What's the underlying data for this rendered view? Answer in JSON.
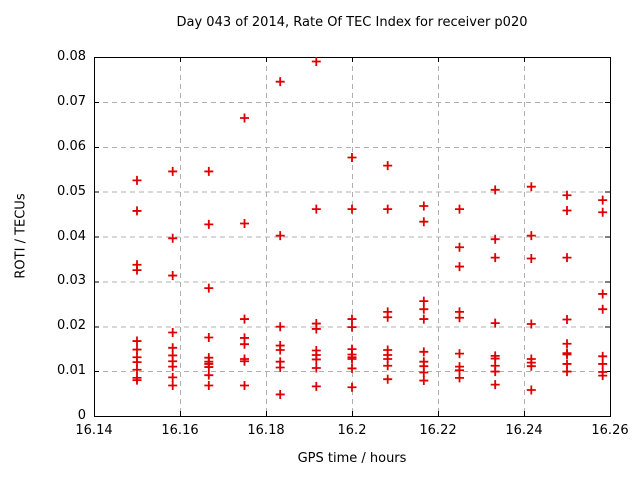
{
  "chart_data": {
    "type": "scatter",
    "title": "Day 043 of 2014, Rate Of TEC Index for receiver p020",
    "xlabel": "GPS time / hours",
    "ylabel": "ROTI / TECUs",
    "xlim": [
      16.14,
      16.26
    ],
    "ylim": [
      0,
      0.08
    ],
    "xticks": [
      16.14,
      16.16,
      16.18,
      16.2,
      16.22,
      16.24,
      16.26
    ],
    "xtick_labels": [
      "16.14",
      "16.16",
      "16.18",
      "16.2",
      "16.22",
      "16.24",
      "16.26"
    ],
    "yticks": [
      0,
      0.01,
      0.02,
      0.03,
      0.04,
      0.05,
      0.06,
      0.07,
      0.08
    ],
    "ytick_labels": [
      "0",
      "0.01",
      "0.02",
      "0.03",
      "0.04",
      "0.05",
      "0.06",
      "0.07",
      "0.08"
    ],
    "grid": true,
    "legend": "none",
    "marker": "plus",
    "marker_color": "#dd0000",
    "grid_color": "#b0b0b0",
    "axis_color": "#000000",
    "series": [
      {
        "name": "ROTI",
        "points": [
          [
            16.15,
            0.0525
          ],
          [
            16.15,
            0.0457
          ],
          [
            16.15,
            0.0337
          ],
          [
            16.15,
            0.0325
          ],
          [
            16.15,
            0.0167
          ],
          [
            16.15,
            0.0148
          ],
          [
            16.15,
            0.0131
          ],
          [
            16.15,
            0.012
          ],
          [
            16.15,
            0.0103
          ],
          [
            16.15,
            0.0085
          ],
          [
            16.15,
            0.008
          ],
          [
            16.1583,
            0.0545
          ],
          [
            16.1583,
            0.0396
          ],
          [
            16.1583,
            0.0313
          ],
          [
            16.1583,
            0.0186
          ],
          [
            16.1583,
            0.0152
          ],
          [
            16.1583,
            0.0135
          ],
          [
            16.1583,
            0.0122
          ],
          [
            16.1583,
            0.011
          ],
          [
            16.1583,
            0.0086
          ],
          [
            16.1583,
            0.0068
          ],
          [
            16.1667,
            0.0545
          ],
          [
            16.1667,
            0.0427
          ],
          [
            16.1667,
            0.0285
          ],
          [
            16.1667,
            0.0175
          ],
          [
            16.1667,
            0.013
          ],
          [
            16.1667,
            0.0121
          ],
          [
            16.1667,
            0.0116
          ],
          [
            16.1667,
            0.0109
          ],
          [
            16.1667,
            0.0091
          ],
          [
            16.1667,
            0.0068
          ],
          [
            16.175,
            0.0664
          ],
          [
            16.175,
            0.0429
          ],
          [
            16.175,
            0.0216
          ],
          [
            16.175,
            0.0174
          ],
          [
            16.175,
            0.016
          ],
          [
            16.175,
            0.0127
          ],
          [
            16.175,
            0.0122
          ],
          [
            16.175,
            0.0068
          ],
          [
            16.1833,
            0.0745
          ],
          [
            16.1833,
            0.0402
          ],
          [
            16.1833,
            0.0199
          ],
          [
            16.1833,
            0.0157
          ],
          [
            16.1833,
            0.0147
          ],
          [
            16.1833,
            0.0121
          ],
          [
            16.1833,
            0.0108
          ],
          [
            16.1833,
            0.0048
          ],
          [
            16.1917,
            0.079
          ],
          [
            16.1917,
            0.0461
          ],
          [
            16.1917,
            0.0206
          ],
          [
            16.1917,
            0.0194
          ],
          [
            16.1917,
            0.0146
          ],
          [
            16.1917,
            0.0136
          ],
          [
            16.1917,
            0.0126
          ],
          [
            16.1917,
            0.0107
          ],
          [
            16.1917,
            0.0066
          ],
          [
            16.2,
            0.0576
          ],
          [
            16.2,
            0.0461
          ],
          [
            16.2,
            0.0216
          ],
          [
            16.2,
            0.0198
          ],
          [
            16.2,
            0.0149
          ],
          [
            16.2,
            0.0137
          ],
          [
            16.2,
            0.0131
          ],
          [
            16.2,
            0.0127
          ],
          [
            16.2,
            0.0106
          ],
          [
            16.2,
            0.0064
          ],
          [
            16.2083,
            0.0558
          ],
          [
            16.2083,
            0.0461
          ],
          [
            16.2083,
            0.0232
          ],
          [
            16.2083,
            0.022
          ],
          [
            16.2083,
            0.0147
          ],
          [
            16.2083,
            0.0136
          ],
          [
            16.2083,
            0.0127
          ],
          [
            16.2083,
            0.0112
          ],
          [
            16.2083,
            0.0082
          ],
          [
            16.2167,
            0.0468
          ],
          [
            16.2167,
            0.0433
          ],
          [
            16.2167,
            0.0256
          ],
          [
            16.2167,
            0.0238
          ],
          [
            16.2167,
            0.0216
          ],
          [
            16.2167,
            0.0143
          ],
          [
            16.2167,
            0.0121
          ],
          [
            16.2167,
            0.0111
          ],
          [
            16.2167,
            0.0097
          ],
          [
            16.2167,
            0.0079
          ],
          [
            16.225,
            0.0461
          ],
          [
            16.225,
            0.0376
          ],
          [
            16.225,
            0.0333
          ],
          [
            16.225,
            0.0232
          ],
          [
            16.225,
            0.0219
          ],
          [
            16.225,
            0.0139
          ],
          [
            16.225,
            0.011
          ],
          [
            16.225,
            0.0102
          ],
          [
            16.225,
            0.0085
          ],
          [
            16.2333,
            0.0504
          ],
          [
            16.2333,
            0.0394
          ],
          [
            16.2333,
            0.0353
          ],
          [
            16.2333,
            0.0207
          ],
          [
            16.2333,
            0.0134
          ],
          [
            16.2333,
            0.0128
          ],
          [
            16.2333,
            0.0112
          ],
          [
            16.2333,
            0.0099
          ],
          [
            16.2333,
            0.007
          ],
          [
            16.2417,
            0.0511
          ],
          [
            16.2417,
            0.0402
          ],
          [
            16.2417,
            0.0351
          ],
          [
            16.2417,
            0.0205
          ],
          [
            16.2417,
            0.0127
          ],
          [
            16.2417,
            0.0119
          ],
          [
            16.2417,
            0.0111
          ],
          [
            16.2417,
            0.0058
          ],
          [
            16.25,
            0.0492
          ],
          [
            16.25,
            0.0458
          ],
          [
            16.25,
            0.0353
          ],
          [
            16.25,
            0.0215
          ],
          [
            16.25,
            0.0161
          ],
          [
            16.25,
            0.014
          ],
          [
            16.25,
            0.0137
          ],
          [
            16.25,
            0.0116
          ],
          [
            16.25,
            0.0099
          ],
          [
            16.2583,
            0.0481
          ],
          [
            16.2583,
            0.0454
          ],
          [
            16.2583,
            0.0272
          ],
          [
            16.2583,
            0.0238
          ],
          [
            16.2583,
            0.0133
          ],
          [
            16.2583,
            0.0116
          ],
          [
            16.2583,
            0.0098
          ],
          [
            16.2583,
            0.009
          ]
        ]
      }
    ]
  }
}
